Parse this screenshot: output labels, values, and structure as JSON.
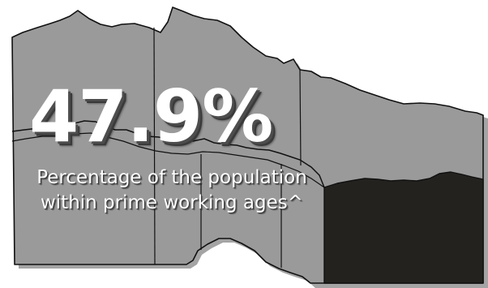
{
  "statistic": {
    "value": "47.9%",
    "caption_line1": "Percentage of the population",
    "caption_line2": "within prime working ages^"
  },
  "colors": {
    "background": "#ffffff",
    "region_fill": "#9a9a9a",
    "highlighted_region_fill": "#24221f",
    "border": "#111111",
    "text": "#ffffff"
  }
}
